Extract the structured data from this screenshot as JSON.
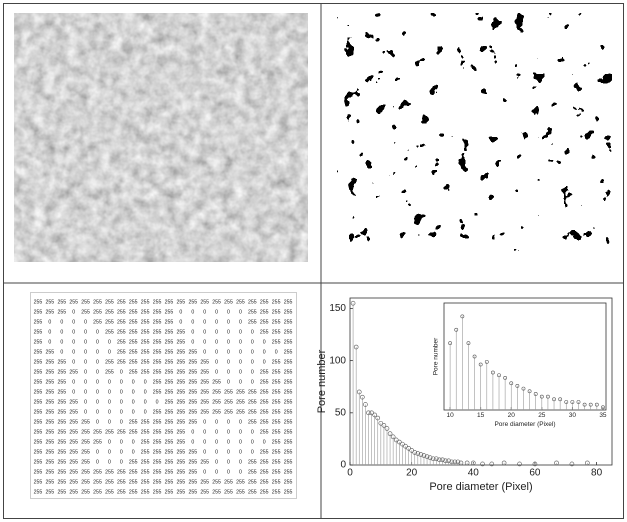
{
  "matrix": {
    "rows": [
      [
        255,
        255,
        255,
        255,
        255,
        255,
        255,
        255,
        255,
        255,
        255,
        255,
        255,
        255,
        255,
        255,
        255,
        255,
        255,
        255,
        255,
        255
      ],
      [
        255,
        255,
        255,
        0,
        255,
        255,
        255,
        255,
        255,
        255,
        255,
        255,
        0,
        0,
        0,
        0,
        0,
        0,
        255,
        255,
        255,
        255
      ],
      [
        255,
        0,
        0,
        0,
        0,
        255,
        255,
        255,
        255,
        255,
        255,
        255,
        0,
        0,
        0,
        0,
        0,
        0,
        255,
        255,
        255,
        255
      ],
      [
        255,
        0,
        0,
        0,
        0,
        0,
        255,
        255,
        255,
        255,
        255,
        255,
        255,
        0,
        0,
        0,
        0,
        0,
        0,
        255,
        255,
        255
      ],
      [
        255,
        0,
        0,
        0,
        0,
        0,
        0,
        255,
        255,
        255,
        255,
        255,
        255,
        0,
        0,
        0,
        0,
        0,
        0,
        0,
        255,
        255
      ],
      [
        255,
        255,
        0,
        0,
        0,
        0,
        0,
        255,
        255,
        255,
        255,
        255,
        255,
        255,
        0,
        0,
        0,
        0,
        0,
        0,
        0,
        255
      ],
      [
        255,
        255,
        255,
        0,
        0,
        0,
        255,
        255,
        255,
        255,
        255,
        255,
        255,
        255,
        255,
        0,
        0,
        0,
        0,
        0,
        255,
        255
      ],
      [
        255,
        255,
        255,
        255,
        0,
        0,
        255,
        0,
        255,
        255,
        255,
        255,
        255,
        255,
        255,
        0,
        0,
        0,
        0,
        255,
        255,
        255
      ],
      [
        255,
        255,
        255,
        0,
        0,
        0,
        0,
        0,
        0,
        0,
        255,
        255,
        255,
        255,
        255,
        255,
        0,
        0,
        0,
        255,
        255,
        255
      ],
      [
        255,
        255,
        255,
        0,
        0,
        0,
        0,
        0,
        0,
        0,
        255,
        255,
        255,
        255,
        255,
        255,
        255,
        255,
        255,
        255,
        255,
        255
      ],
      [
        255,
        255,
        255,
        255,
        0,
        0,
        0,
        0,
        0,
        0,
        0,
        255,
        255,
        255,
        255,
        255,
        255,
        255,
        255,
        255,
        255,
        255
      ],
      [
        255,
        255,
        255,
        255,
        0,
        0,
        0,
        0,
        0,
        0,
        255,
        255,
        255,
        255,
        255,
        255,
        255,
        255,
        255,
        255,
        255,
        255
      ],
      [
        255,
        255,
        255,
        255,
        255,
        0,
        0,
        0,
        255,
        255,
        255,
        255,
        255,
        255,
        0,
        0,
        0,
        0,
        255,
        255,
        255,
        255
      ],
      [
        255,
        255,
        255,
        255,
        255,
        255,
        255,
        255,
        255,
        255,
        255,
        255,
        255,
        0,
        0,
        0,
        0,
        0,
        0,
        255,
        255,
        255
      ],
      [
        255,
        255,
        255,
        255,
        255,
        255,
        0,
        0,
        0,
        255,
        255,
        255,
        255,
        0,
        0,
        0,
        0,
        0,
        0,
        0,
        255,
        255
      ],
      [
        255,
        255,
        255,
        255,
        255,
        0,
        0,
        0,
        0,
        255,
        255,
        255,
        255,
        255,
        0,
        0,
        0,
        0,
        0,
        255,
        255,
        255
      ],
      [
        255,
        255,
        255,
        255,
        255,
        0,
        0,
        0,
        255,
        255,
        255,
        255,
        255,
        255,
        255,
        0,
        0,
        0,
        255,
        255,
        255,
        255
      ],
      [
        255,
        255,
        255,
        255,
        255,
        255,
        255,
        255,
        255,
        255,
        255,
        255,
        255,
        255,
        0,
        0,
        0,
        0,
        255,
        255,
        255,
        255
      ],
      [
        255,
        255,
        255,
        255,
        255,
        255,
        255,
        255,
        255,
        255,
        255,
        255,
        255,
        255,
        255,
        255,
        255,
        255,
        255,
        255,
        255,
        255
      ],
      [
        255,
        255,
        255,
        255,
        255,
        255,
        255,
        255,
        255,
        255,
        255,
        255,
        255,
        255,
        255,
        255,
        255,
        255,
        255,
        255,
        255,
        255
      ]
    ]
  },
  "chart_data": [
    {
      "type": "stem",
      "xlabel": "Pore diameter (Pixel)",
      "ylabel": "Pore number",
      "color": "#555555",
      "x": [
        1,
        2,
        3,
        4,
        5,
        6,
        7,
        8,
        9,
        10,
        11,
        12,
        13,
        14,
        15,
        16,
        17,
        18,
        19,
        20,
        21,
        22,
        23,
        24,
        25,
        26,
        27,
        28,
        29,
        30,
        31,
        32,
        33,
        34,
        35,
        36,
        38,
        40,
        43,
        46,
        50,
        55,
        60,
        67,
        72,
        77
      ],
      "values": [
        155,
        113,
        70,
        65,
        58,
        50,
        50,
        48,
        45,
        40,
        38,
        35,
        30,
        27,
        24,
        22,
        20,
        18,
        16,
        14,
        12,
        11,
        10,
        9,
        8,
        7,
        6,
        6,
        5,
        5,
        4,
        4,
        3,
        3,
        3,
        2,
        2,
        2,
        1,
        1,
        2,
        1,
        1,
        2,
        1,
        2
      ],
      "xlim": [
        0,
        85
      ],
      "xticks": [
        0,
        20,
        40,
        60,
        80
      ],
      "ylim": [
        0,
        160
      ],
      "yticks": [
        0,
        50,
        100,
        150
      ]
    },
    {
      "type": "stem",
      "xlabel": "Pore diameter (Pixel)",
      "ylabel": "Pore number",
      "color": "#555555",
      "x": [
        10,
        11,
        12,
        13,
        14,
        15,
        16,
        17,
        18,
        19,
        20,
        21,
        22,
        23,
        24,
        25,
        26,
        27,
        28,
        29,
        30,
        31,
        32,
        33,
        34,
        35
      ],
      "values": [
        25,
        30,
        35,
        25,
        20,
        17,
        18,
        14,
        13,
        12,
        10,
        9,
        8,
        7,
        6,
        5,
        5,
        4,
        4,
        3,
        3,
        3,
        2,
        2,
        2,
        1
      ],
      "xlim": [
        9,
        35.5
      ],
      "xticks": [
        10,
        15,
        20,
        25,
        30,
        35
      ],
      "ylim": [
        0,
        40
      ]
    }
  ]
}
